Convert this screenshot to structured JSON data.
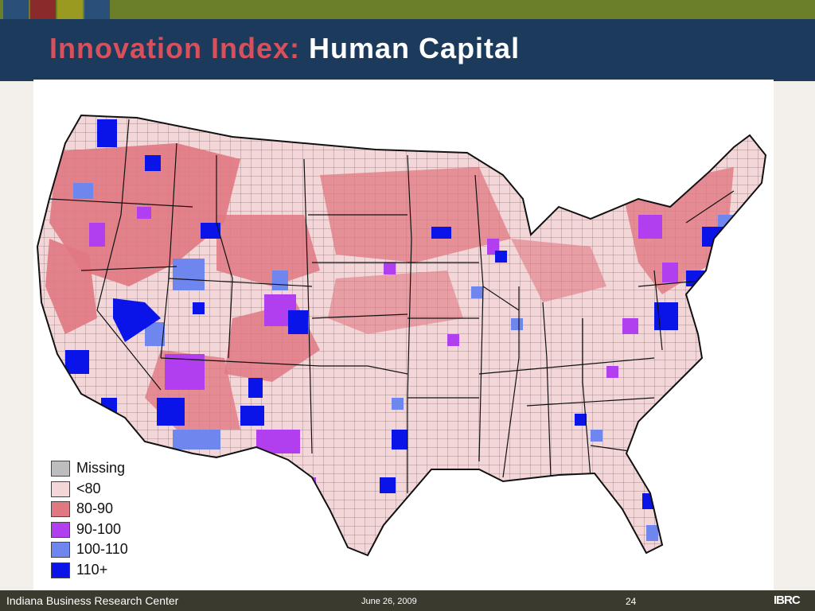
{
  "slide": {
    "title_part1": "Innovation Index:",
    "title_part2": "Human Capital",
    "footer_org": "Indiana Business Research Center",
    "footer_date": "June 26, 2009",
    "footer_page": "24",
    "footer_logo": "IBRC"
  },
  "colors": {
    "header": "#1c3a5c",
    "topbar": "#6b7f2a",
    "title_accent": "#d7505c",
    "squares": [
      "#2a4f78",
      "#8a2a2a",
      "#9a9a20",
      "#2a4f78"
    ]
  },
  "map": {
    "region": "contiguous United States counties",
    "legend": [
      {
        "label": "Missing",
        "color": "#bdbdbd"
      },
      {
        "label": "<80",
        "color": "#f2d6d8"
      },
      {
        "label": "80-90",
        "color": "#e07882"
      },
      {
        "label": "90-100",
        "color": "#b13ff0"
      },
      {
        "label": "100-110",
        "color": "#6f86ef"
      },
      {
        "label": "110+",
        "color": "#0a14e8"
      }
    ]
  }
}
